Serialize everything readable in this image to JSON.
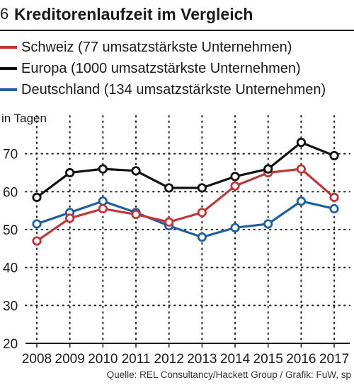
{
  "figure": {
    "number": "6",
    "title": "Kreditorenlaufzeit im Vergleich",
    "source": "Quelle: REL Consultancy/Hackett Group / Grafik: FuW, sp"
  },
  "colors": {
    "schweiz": "#c0373a",
    "europa": "#111111",
    "deutschland": "#1f5fa0"
  },
  "chart_data": {
    "type": "line",
    "title": "Kreditorenlaufzeit im Vergleich",
    "ylabel": "in Tagen",
    "xlabel": "",
    "ylim": [
      20,
      80
    ],
    "yticks": [
      20,
      30,
      40,
      50,
      60,
      70
    ],
    "grid": true,
    "legend_position": "top",
    "categories": [
      "2008",
      "2009",
      "2010",
      "2011",
      "2012",
      "2013",
      "2014",
      "2015",
      "2016",
      "2017"
    ],
    "series": [
      {
        "key": "schweiz",
        "name": "Schweiz (77 umsatzstärkste Unternehmen)",
        "values": [
          47,
          53,
          55.5,
          54,
          52,
          54.5,
          61.5,
          65,
          66,
          58.5
        ]
      },
      {
        "key": "europa",
        "name": "Europa (1000 umsatzstärkste Unternehmen)",
        "values": [
          58.5,
          65,
          66,
          65.5,
          61,
          61,
          64,
          66,
          73,
          69.5
        ]
      },
      {
        "key": "deutschland",
        "name": "Deutschland (134 umsatzstärkste Unternehmen)",
        "values": [
          51.5,
          54.5,
          57.5,
          54.5,
          51,
          48,
          50.5,
          51.5,
          57.5,
          55.5
        ]
      }
    ]
  }
}
